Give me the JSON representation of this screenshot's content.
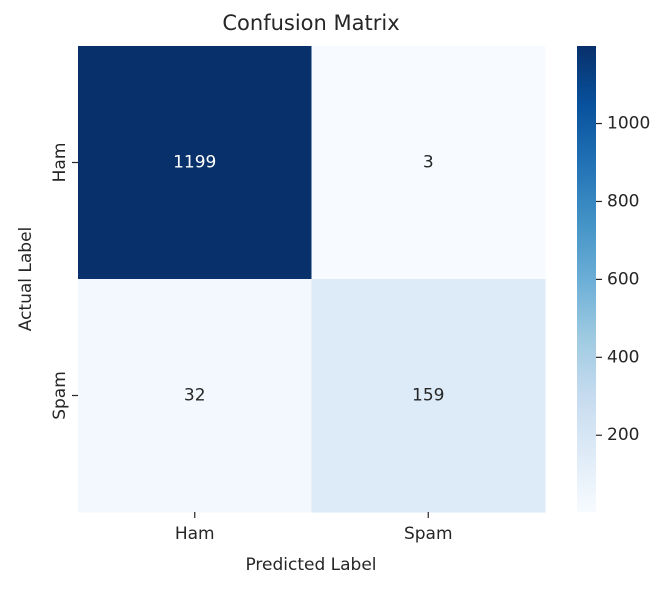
{
  "chart_data": {
    "type": "heatmap",
    "title": "Confusion Matrix",
    "x_label": "Predicted Label",
    "y_label": "Actual Label",
    "x_categories": [
      "Ham",
      "Spam"
    ],
    "y_categories": [
      "Ham",
      "Spam"
    ],
    "values": [
      [
        1199,
        3
      ],
      [
        32,
        159
      ]
    ],
    "colormap": "Blues",
    "clim": [
      3,
      1199
    ],
    "colorbar_ticks": [
      200,
      400,
      600,
      800,
      1000
    ]
  }
}
